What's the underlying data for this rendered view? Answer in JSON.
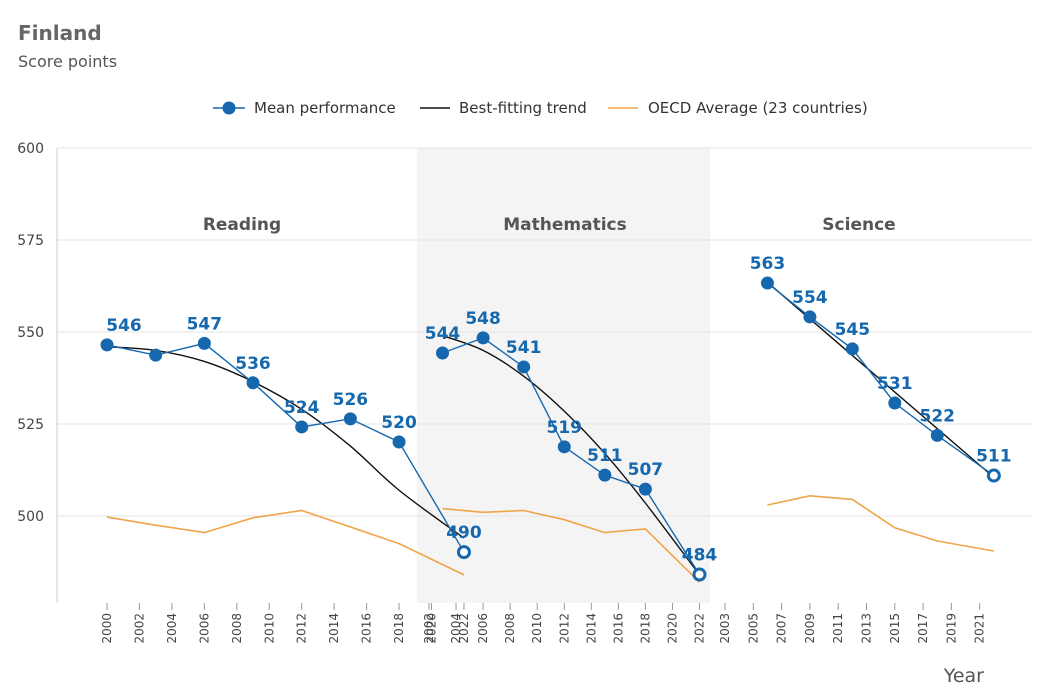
{
  "header": {
    "title": "Finland",
    "subtitle": "Score points"
  },
  "chart_data": {
    "type": "line",
    "title": "Finland",
    "subtitle": "Score points",
    "xlabel": "Year",
    "ylabel": "Score points",
    "ylim": [
      475,
      600
    ],
    "yticks": [
      500,
      525,
      550,
      575,
      600
    ],
    "legend": {
      "placement": "top",
      "items": [
        {
          "label": "Mean performance",
          "color": "#1668ae"
        },
        {
          "label": "Best-fitting trend",
          "color": "#111111"
        },
        {
          "label": "OECD Average (23 countries)",
          "color": "#f0a448"
        }
      ]
    },
    "colors": {
      "mean": "#1668ae",
      "trend": "#111111",
      "oecd": "#f0a448",
      "shade": "#f4f4f4",
      "grid": "#e3e3e3"
    },
    "panels": [
      {
        "name": "Reading",
        "shaded": false,
        "ticks": [
          "2000",
          "2002",
          "2004",
          "2006",
          "2008",
          "2010",
          "2012",
          "2014",
          "2016",
          "2018",
          "2020",
          "2022"
        ],
        "mean": {
          "x": [
            2000,
            2003,
            2006,
            2009,
            2012,
            2015,
            2018,
            2022
          ],
          "y": [
            546.5,
            543.7,
            546.9,
            536.2,
            524.2,
            526.4,
            520.1,
            490.2
          ],
          "labels": [
            "546",
            "",
            "547",
            "536",
            "524",
            "526",
            "520",
            "490"
          ],
          "hollow_last": true
        },
        "trend": {
          "x": [
            2000,
            2003,
            2006,
            2009,
            2012,
            2015,
            2018,
            2022
          ],
          "y": [
            546,
            545,
            542,
            536.5,
            529,
            519,
            507,
            494
          ]
        },
        "oecd": {
          "x": [
            2000,
            2003,
            2006,
            2009,
            2012,
            2015,
            2018,
            2022
          ],
          "y": [
            499.7,
            497.5,
            495.5,
            499.5,
            501.5,
            497,
            492.5,
            484
          ]
        }
      },
      {
        "name": "Mathematics",
        "shaded": true,
        "ticks": [
          "2002",
          "2004",
          "2006",
          "2008",
          "2010",
          "2012",
          "2014",
          "2016",
          "2018",
          "2020",
          "2022"
        ],
        "mean": {
          "x": [
            2003,
            2006,
            2009,
            2012,
            2015,
            2018,
            2022
          ],
          "y": [
            544.3,
            548.4,
            540.5,
            518.8,
            511.1,
            507.3,
            484.1
          ],
          "labels": [
            "544",
            "548",
            "541",
            "519",
            "511",
            "507",
            "484"
          ],
          "hollow_last": true
        },
        "trend": {
          "x": [
            2003,
            2006,
            2009,
            2012,
            2015,
            2018,
            2022
          ],
          "y": [
            549,
            545,
            538,
            528.5,
            517,
            503.5,
            484
          ]
        },
        "oecd": {
          "x": [
            2003,
            2006,
            2009,
            2012,
            2015,
            2018,
            2022
          ],
          "y": [
            502,
            501,
            501.5,
            499,
            495.5,
            496.5,
            482
          ]
        }
      },
      {
        "name": "Science",
        "shaded": false,
        "ticks": [
          "2003",
          "2005",
          "2007",
          "2009",
          "2011",
          "2013",
          "2015",
          "2017",
          "2019",
          "2021"
        ],
        "mean": {
          "x": [
            2006,
            2009,
            2012,
            2015,
            2018,
            2022
          ],
          "y": [
            563.3,
            554.1,
            545.4,
            530.7,
            521.9,
            511
          ],
          "labels": [
            "563",
            "554",
            "545",
            "531",
            "522",
            "511"
          ],
          "hollow_last": true
        },
        "trend": {
          "x": [
            2006,
            2022
          ],
          "y": [
            563.5,
            510.5
          ]
        },
        "oecd": {
          "x": [
            2006,
            2009,
            2012,
            2015,
            2018,
            2022
          ],
          "y": [
            503,
            505.5,
            504.5,
            496.8,
            493.2,
            490.5
          ]
        }
      }
    ]
  }
}
